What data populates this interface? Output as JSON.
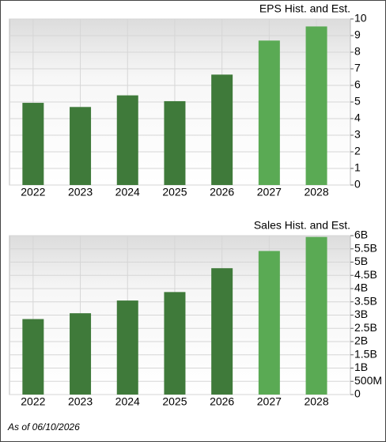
{
  "chart_data": [
    {
      "type": "bar",
      "title": "EPS Hist. and Est.",
      "categories": [
        "2022",
        "2023",
        "2024",
        "2025",
        "2026",
        "2027",
        "2028"
      ],
      "values": [
        4.95,
        4.7,
        5.4,
        5.05,
        6.65,
        8.7,
        9.55
      ],
      "colors": [
        "#3f7a3a",
        "#3f7a3a",
        "#3f7a3a",
        "#3f7a3a",
        "#3f7a3a",
        "#5aaa54",
        "#5aaa54"
      ],
      "ylim": [
        0,
        10
      ],
      "yticks": [
        0,
        1,
        2,
        3,
        4,
        5,
        6,
        7,
        8,
        9,
        10
      ],
      "grid": true
    },
    {
      "type": "bar",
      "title": "Sales Hist. and Est.",
      "categories": [
        "2022",
        "2023",
        "2024",
        "2025",
        "2026",
        "2027",
        "2028"
      ],
      "values": [
        2850000000,
        3070000000,
        3550000000,
        3870000000,
        4770000000,
        5420000000,
        5950000000
      ],
      "colors": [
        "#3f7a3a",
        "#3f7a3a",
        "#3f7a3a",
        "#3f7a3a",
        "#3f7a3a",
        "#5aaa54",
        "#5aaa54"
      ],
      "ylim": [
        0,
        6000000000
      ],
      "yticks": [
        0,
        {
          "value": 500000000,
          "label": "500M"
        },
        {
          "value": 1000000000,
          "label": "1B"
        },
        {
          "value": 1500000000,
          "label": "1.5B"
        },
        {
          "value": 2000000000,
          "label": "2B"
        },
        {
          "value": 2500000000,
          "label": "2.5B"
        },
        {
          "value": 3000000000,
          "label": "3B"
        },
        {
          "value": 3500000000,
          "label": "3.5B"
        },
        {
          "value": 4000000000,
          "label": "4B"
        },
        {
          "value": 4500000000,
          "label": "4.5B"
        },
        {
          "value": 5000000000,
          "label": "5B"
        },
        {
          "value": 5500000000,
          "label": "5.5B"
        },
        {
          "value": 6000000000,
          "label": "6B"
        }
      ],
      "grid": true
    }
  ],
  "footer": "As of 06/10/2026"
}
